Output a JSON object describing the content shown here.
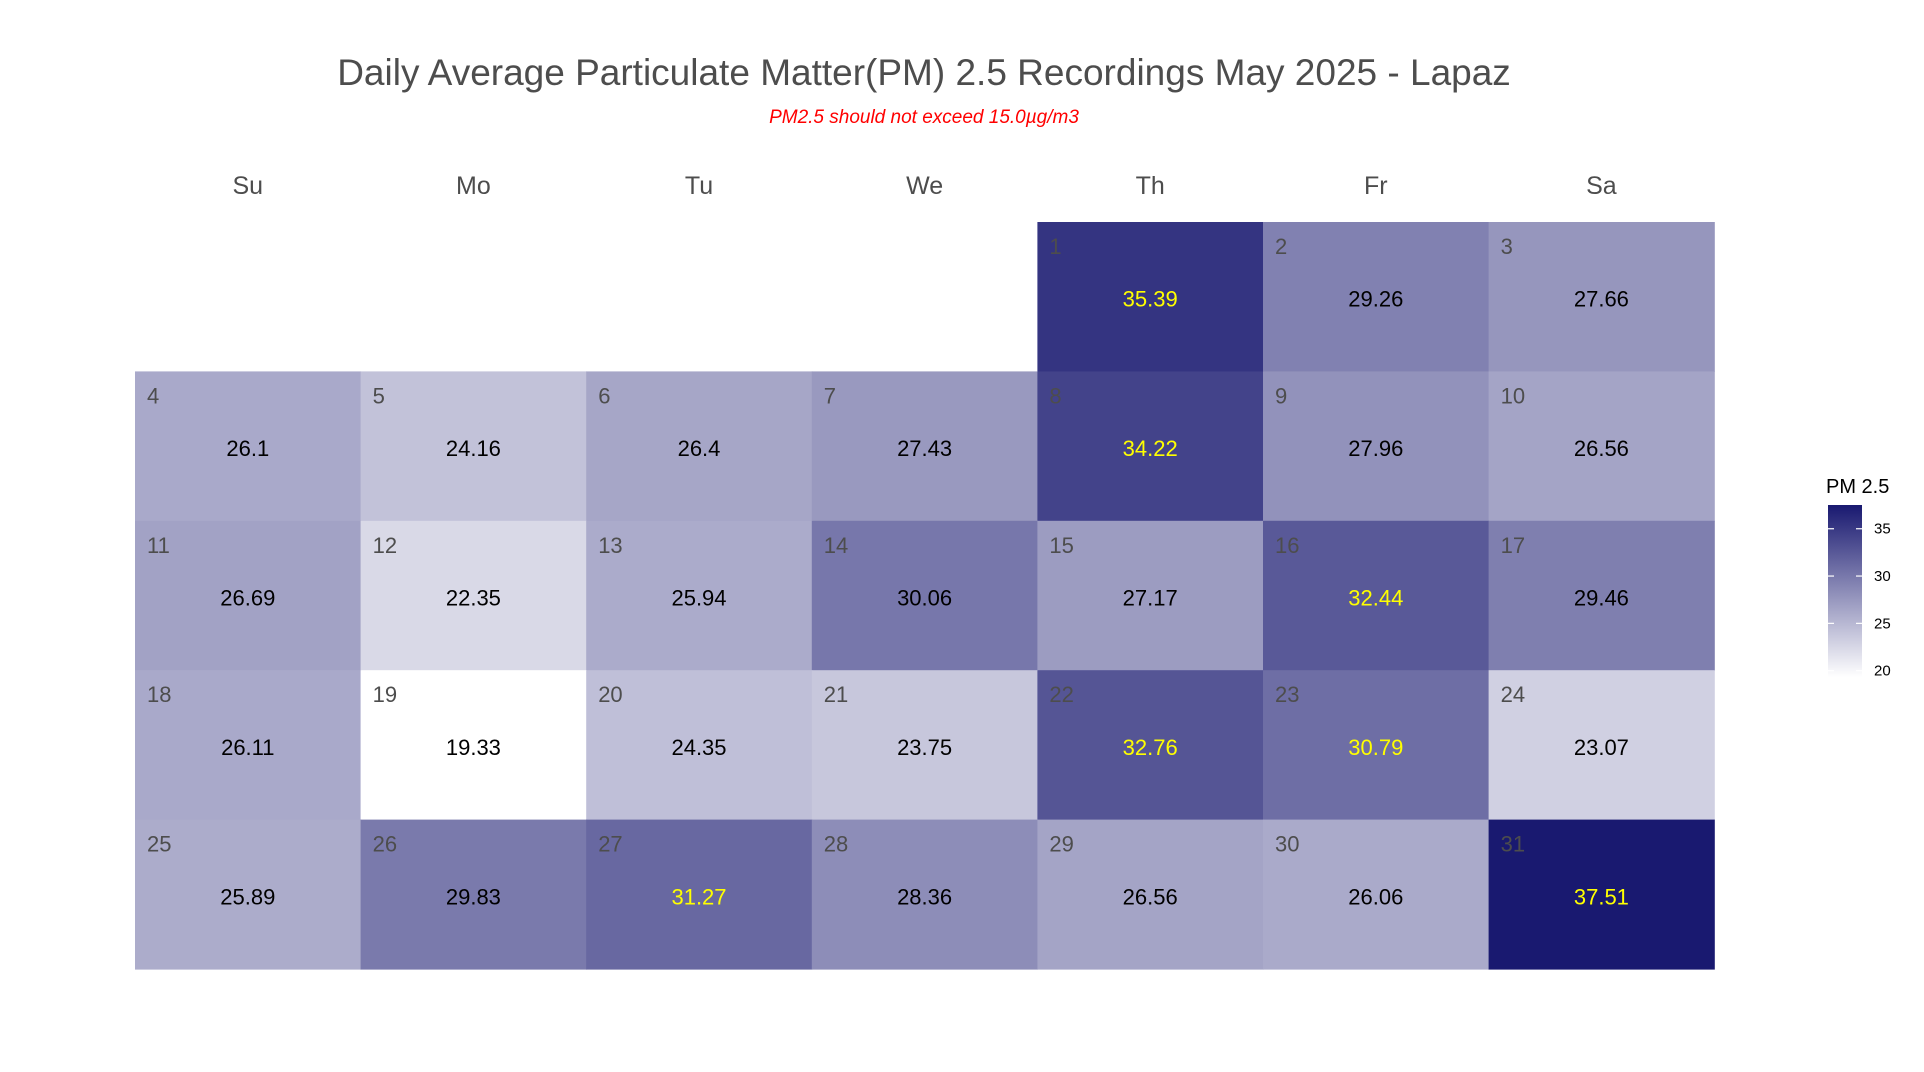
{
  "chart_data": {
    "type": "heatmap",
    "title": "Daily Average Particulate Matter(PM) 2.5 Recordings May 2025 -  Lapaz",
    "subtitle": "PM2.5 should not exceed 15.0µg/m3",
    "weekdays": [
      "Su",
      "Mo",
      "Tu",
      "We",
      "Th",
      "Fr",
      "Sa"
    ],
    "first_weekday_index": 4,
    "days": [
      1,
      2,
      3,
      4,
      5,
      6,
      7,
      8,
      9,
      10,
      11,
      12,
      13,
      14,
      15,
      16,
      17,
      18,
      19,
      20,
      21,
      22,
      23,
      24,
      25,
      26,
      27,
      28,
      29,
      30,
      31
    ],
    "values": [
      35.39,
      29.26,
      27.66,
      26.1,
      24.16,
      26.4,
      27.43,
      34.22,
      27.96,
      26.56,
      26.69,
      22.35,
      25.94,
      30.06,
      27.17,
      32.44,
      29.46,
      26.11,
      19.33,
      24.35,
      23.75,
      32.76,
      30.79,
      23.07,
      25.89,
      29.83,
      31.27,
      28.36,
      26.56,
      26.06,
      37.51
    ],
    "value_labels": [
      "35.39",
      "29.26",
      "27.66",
      "26.1",
      "24.16",
      "26.4",
      "27.43",
      "34.22",
      "27.96",
      "26.56",
      "26.69",
      "22.35",
      "25.94",
      "30.06",
      "27.17",
      "32.44",
      "29.46",
      "26.11",
      "19.33",
      "24.35",
      "23.75",
      "32.76",
      "30.79",
      "23.07",
      "25.89",
      "29.83",
      "31.27",
      "28.36",
      "26.56",
      "26.06",
      "37.51"
    ],
    "highlight_threshold": 30.5,
    "colors": {
      "low": "#ffffff",
      "high": "#191970",
      "label_normal": "#000000",
      "label_high": "#ffff00"
    },
    "legend": {
      "title": "PM 2.5",
      "ticks": [
        20,
        25,
        30,
        35
      ],
      "tick_labels": [
        "20",
        "25",
        "30",
        "35"
      ],
      "range": [
        19.33,
        37.51
      ],
      "position": "right"
    }
  }
}
